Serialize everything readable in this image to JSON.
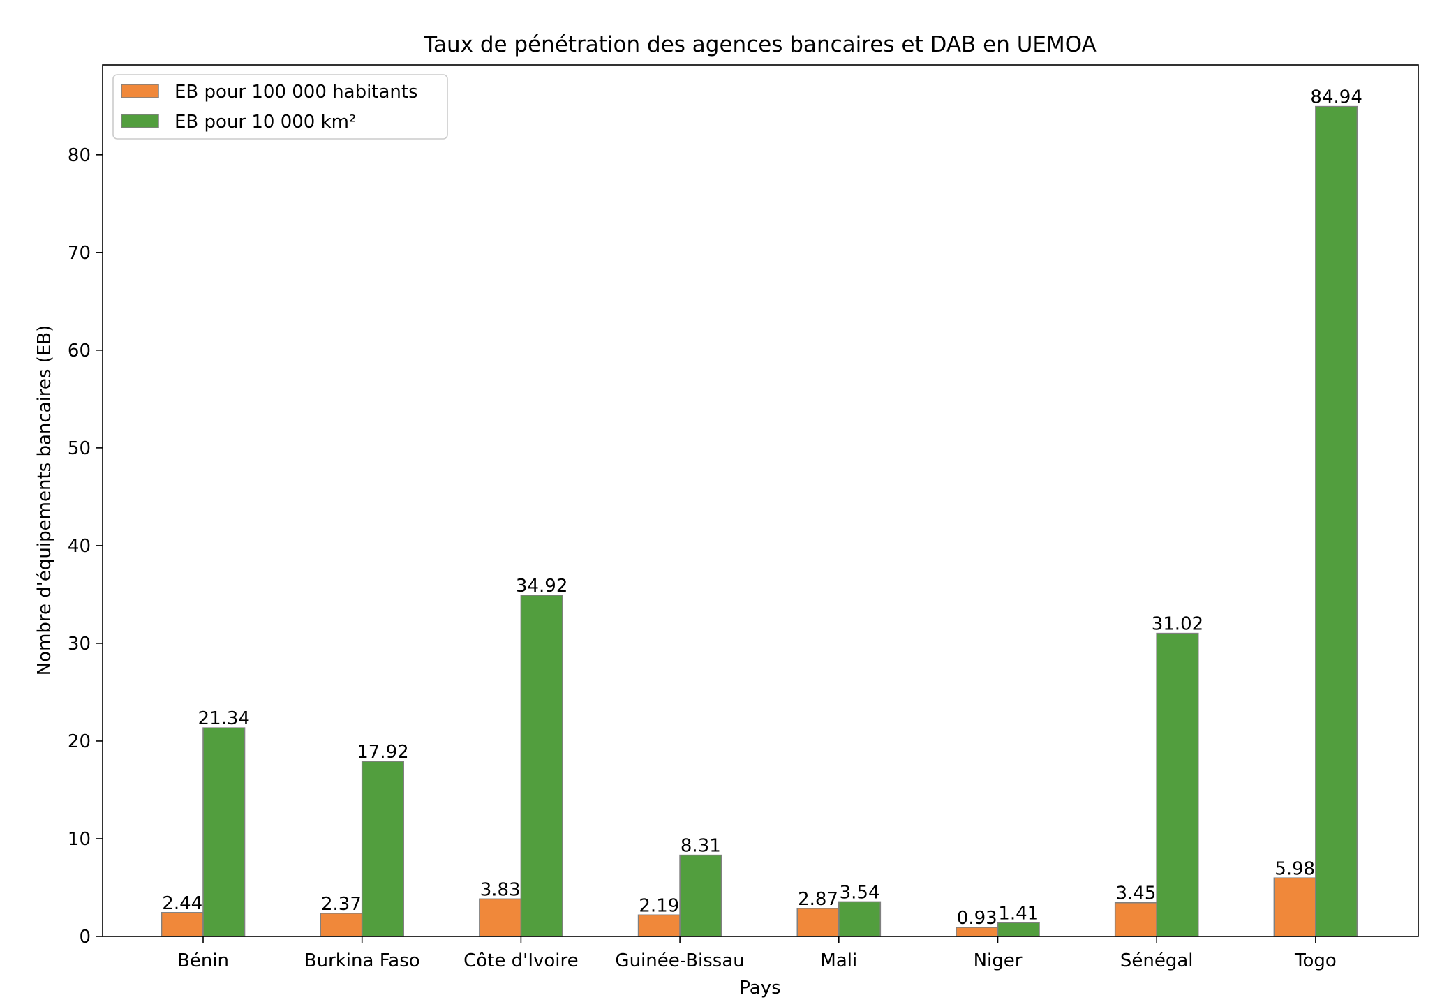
{
  "chart_data": {
    "type": "bar",
    "title": "Taux de pénétration des agences bancaires et DAB en UEMOA",
    "xlabel": "Pays",
    "ylabel": "Nombre d'équipements bancaires (EB)",
    "categories": [
      "Bénin",
      "Burkina Faso",
      "Côte d'Ivoire",
      "Guinée-Bissau",
      "Mali",
      "Niger",
      "Sénégal",
      "Togo"
    ],
    "series": [
      {
        "name": "EB pour 100 000 habitants",
        "color": "#F0883A",
        "values": [
          2.44,
          2.37,
          3.83,
          2.19,
          2.87,
          0.93,
          3.45,
          5.98
        ],
        "labels": [
          "2.44",
          "2.37",
          "3.83",
          "2.19",
          "2.87",
          "0.93",
          "3.45",
          "5.98"
        ]
      },
      {
        "name": "EB pour 10 000 km²",
        "color": "#529E3E",
        "values": [
          21.34,
          17.92,
          34.92,
          8.31,
          3.54,
          1.41,
          31.02,
          84.94
        ],
        "labels": [
          "21.34",
          "17.92",
          "34.92",
          "8.31",
          "3.54",
          "1.41",
          "31.02",
          "84.94"
        ]
      }
    ],
    "ylim": [
      0,
      89.2
    ],
    "yticks": [
      "0",
      "10",
      "20",
      "30",
      "40",
      "50",
      "60",
      "70",
      "80"
    ],
    "grid": false,
    "legend_position": "upper-left",
    "bar_edge_color": "#808080"
  }
}
